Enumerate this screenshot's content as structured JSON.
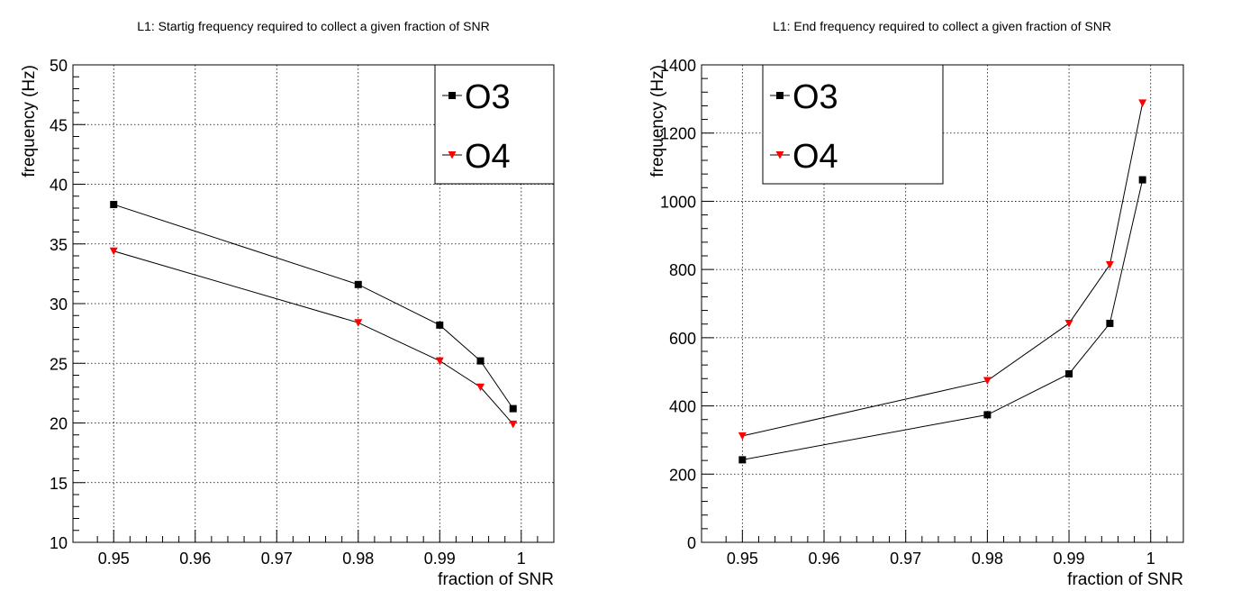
{
  "chart_data": [
    {
      "type": "line",
      "title": "L1: Startig frequency required to collect a given fraction of SNR",
      "xlabel": "fraction of SNR",
      "ylabel": "frequency (Hz)",
      "xlim": [
        0.945,
        1.004
      ],
      "ylim": [
        10,
        50
      ],
      "x_ticks": [
        0.95,
        0.96,
        0.97,
        0.98,
        0.99,
        1
      ],
      "x_tick_labels": [
        "0.95",
        "0.96",
        "0.97",
        "0.98",
        "0.99",
        "1"
      ],
      "y_ticks": [
        10,
        15,
        20,
        25,
        30,
        35,
        40,
        45,
        50
      ],
      "y_tick_labels": [
        "10",
        "15",
        "20",
        "25",
        "30",
        "35",
        "40",
        "45",
        "50"
      ],
      "grid": true,
      "legend": "top-right",
      "series": [
        {
          "name": "O3",
          "color": "#000000",
          "marker": "square",
          "x": [
            0.95,
            0.98,
            0.99,
            0.995,
            0.999
          ],
          "y": [
            38.3,
            31.6,
            28.2,
            25.2,
            21.2
          ]
        },
        {
          "name": "O4",
          "color": "#ff0000",
          "marker": "triangle-down",
          "x": [
            0.95,
            0.98,
            0.99,
            0.995,
            0.999
          ],
          "y": [
            34.4,
            28.4,
            25.2,
            23.0,
            19.9
          ]
        }
      ]
    },
    {
      "type": "line",
      "title": "L1: End frequency required to collect a given fraction of SNR",
      "xlabel": "fraction of SNR",
      "ylabel": "frequency (Hz)",
      "xlim": [
        0.945,
        1.004
      ],
      "ylim": [
        0,
        1400
      ],
      "x_ticks": [
        0.95,
        0.96,
        0.97,
        0.98,
        0.99,
        1
      ],
      "x_tick_labels": [
        "0.95",
        "0.96",
        "0.97",
        "0.98",
        "0.99",
        "1"
      ],
      "y_ticks": [
        0,
        200,
        400,
        600,
        800,
        1000,
        1200,
        1400
      ],
      "y_tick_labels": [
        "0",
        "200",
        "400",
        "600",
        "800",
        "1000",
        "1200",
        "1400"
      ],
      "grid": true,
      "legend": "top-left",
      "series": [
        {
          "name": "O3",
          "color": "#000000",
          "marker": "square",
          "x": [
            0.95,
            0.98,
            0.99,
            0.995,
            0.999
          ],
          "y": [
            242,
            374,
            494,
            642,
            1063
          ]
        },
        {
          "name": "O4",
          "color": "#ff0000",
          "marker": "triangle-down",
          "x": [
            0.95,
            0.98,
            0.99,
            0.995,
            0.999
          ],
          "y": [
            312,
            474,
            642,
            814,
            1288
          ]
        }
      ]
    }
  ]
}
